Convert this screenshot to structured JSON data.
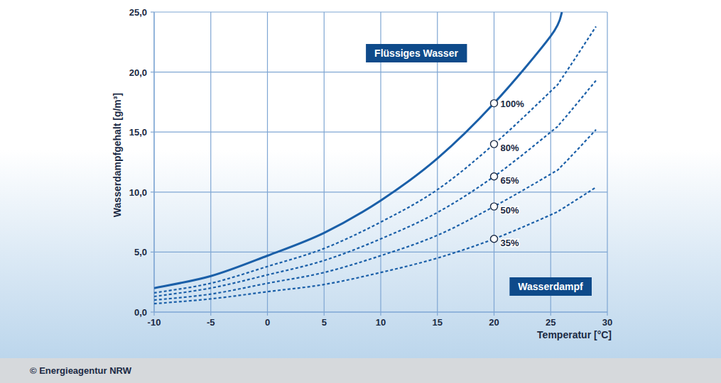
{
  "chart_data": {
    "type": "line",
    "y_label": "Wasserdampfgehalt [g/m³]",
    "x_label": "Temperatur [°C]",
    "region_labels": [
      "Flüssiges Wasser",
      "Wasserdampf"
    ],
    "source": "© Energieagentur NRW",
    "x": [
      -10,
      -5,
      0,
      5,
      10,
      15,
      20,
      25,
      26,
      29
    ],
    "series": [
      {
        "color": "#1a5fa8",
        "line_style": "solid",
        "values": [
          2.0,
          3.0,
          4.7,
          6.6,
          9.3,
          12.8,
          17.4,
          23.0,
          25.0,
          null
        ]
      },
      {
        "color": "#1a5fa8",
        "line_style": "dashed",
        "values": [
          1.6,
          2.4,
          3.8,
          5.3,
          7.5,
          10.2,
          14.0,
          18.4,
          19.5,
          23.8
        ]
      },
      {
        "color": "#1a5fa8",
        "line_style": "dashed",
        "values": [
          1.3,
          2.0,
          3.1,
          4.3,
          6.1,
          8.3,
          11.3,
          15.0,
          15.9,
          19.3
        ]
      },
      {
        "color": "#1a5fa8",
        "line_style": "dashed",
        "values": [
          1.0,
          1.5,
          2.4,
          3.3,
          4.7,
          6.4,
          8.8,
          11.5,
          12.2,
          15.2
        ]
      },
      {
        "color": "#1a5fa8",
        "line_style": "dashed",
        "values": [
          0.7,
          1.1,
          1.7,
          2.3,
          3.3,
          4.5,
          6.1,
          8.1,
          8.6,
          10.4
        ]
      }
    ],
    "annotations": [
      {
        "text": "100%",
        "x": 20,
        "y": 17.4
      },
      {
        "text": "80%",
        "x": 20,
        "y": 14.0
      },
      {
        "text": "65%",
        "x": 20,
        "y": 11.3
      },
      {
        "text": "50%",
        "x": 20,
        "y": 8.8
      },
      {
        "text": "35%",
        "x": 20,
        "y": 6.1
      }
    ],
    "xlim": [
      -10,
      30
    ],
    "xticks": [
      -10,
      -5,
      0,
      5,
      10,
      15,
      20,
      25,
      30
    ],
    "ylim": [
      0,
      25
    ],
    "yticks": [
      {
        "value": 0,
        "label": "0,0"
      },
      {
        "value": 5,
        "label": "5,0"
      },
      {
        "value": 10,
        "label": "10,0"
      },
      {
        "value": 15,
        "label": "15,0"
      },
      {
        "value": 20,
        "label": "20,0"
      },
      {
        "value": 25,
        "label": "25,0"
      }
    ],
    "grid": true,
    "marker": "circle"
  }
}
